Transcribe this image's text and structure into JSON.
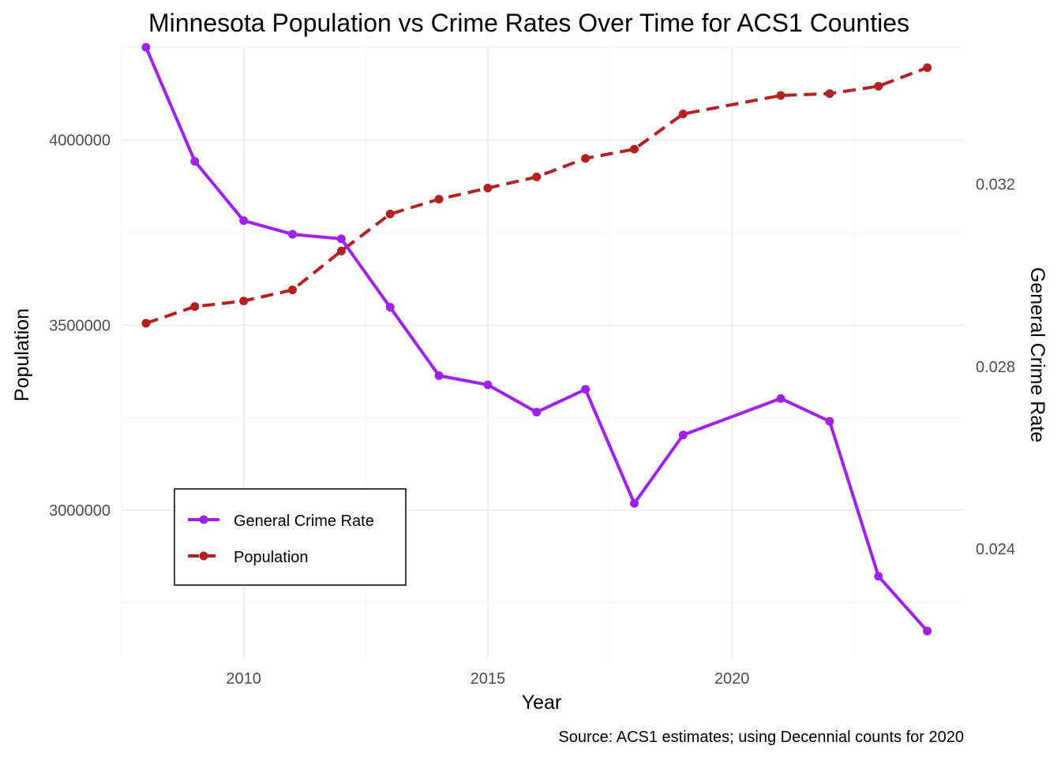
{
  "chart_data": {
    "type": "line",
    "title": "Minnesota Population vs Crime Rates Over Time for ACS1 Counties",
    "caption": "Source: ACS1 estimates; using Decennial counts for 2020",
    "xlabel": "Year",
    "ylabel": "Population",
    "ylabel_right": "General Crime Rate",
    "x_ticks": [
      "2010",
      "2015",
      "2020"
    ],
    "y_ticks": [
      "3000000",
      "3500000",
      "4000000"
    ],
    "y_right_ticks": [
      "0.024",
      "0.028",
      "0.032"
    ],
    "xlim": [
      2007.5,
      2024.75
    ],
    "ylim": [
      2600000,
      4250000
    ],
    "ylim_right": [
      0.0216,
      0.035
    ],
    "grid": true,
    "legend": {
      "position": "bottom-left"
    },
    "series": [
      {
        "name": "General Crime Rate",
        "axis": "right",
        "color": "#a020f0",
        "line_style": "solid",
        "x": [
          2008,
          2009,
          2010,
          2011,
          2012,
          2013,
          2014,
          2015,
          2016,
          2017,
          2018,
          2019,
          2021,
          2022,
          2023,
          2024
        ],
        "values": [
          0.035,
          0.0325,
          0.0312,
          0.0309,
          0.0308,
          0.0293,
          0.0278,
          0.0276,
          0.027,
          0.0275,
          0.025,
          0.0265,
          0.0273,
          0.0268,
          0.0234,
          0.0222
        ]
      },
      {
        "name": "Population",
        "axis": "left",
        "color": "#b22222",
        "line_style": "dashed",
        "x": [
          2008,
          2009,
          2010,
          2011,
          2012,
          2013,
          2014,
          2015,
          2016,
          2017,
          2018,
          2019,
          2021,
          2022,
          2023,
          2024
        ],
        "values": [
          3505000,
          3550000,
          3565000,
          3595000,
          3700000,
          3800000,
          3840000,
          3870000,
          3900000,
          3950000,
          3975000,
          4070000,
          4120000,
          4125000,
          4145000,
          4195000
        ]
      }
    ]
  }
}
